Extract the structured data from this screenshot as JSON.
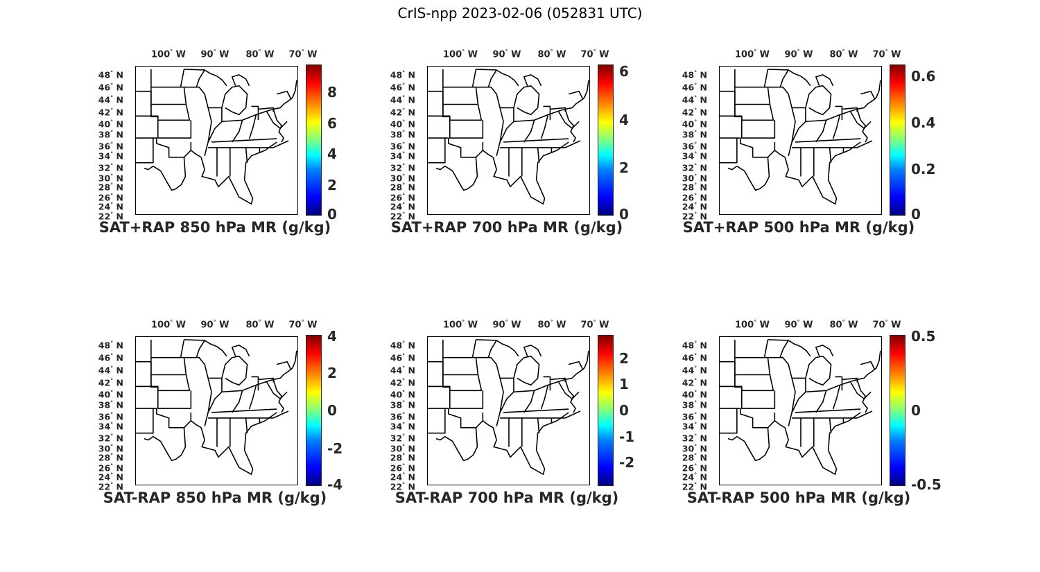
{
  "title": "CrIS-npp 2023-02-06 (052831 UTC)",
  "lon_labels": [
    "100",
    "90",
    "80",
    "70"
  ],
  "lon_suffix": "W",
  "lat_labels": [
    "48",
    "46",
    "44",
    "42",
    "40",
    "38",
    "36",
    "34",
    "32",
    "30",
    "28",
    "26",
    "24",
    "22"
  ],
  "lat_suffix": "N",
  "degree_symbol": "°",
  "colormap": "jet",
  "panels": [
    {
      "caption": "SAT+RAP 850 hPa MR (g/kg)",
      "ticks": [
        "0",
        "2",
        "4",
        "6",
        "8"
      ],
      "tick_values": [
        0,
        2,
        4,
        6,
        8
      ],
      "range": [
        0,
        9.8
      ]
    },
    {
      "caption": "SAT+RAP 700 hPa MR (g/kg)",
      "ticks": [
        "0",
        "2",
        "4",
        "6"
      ],
      "tick_values": [
        0,
        2,
        4,
        6
      ],
      "range": [
        0,
        6.3
      ]
    },
    {
      "caption": "SAT+RAP 500 hPa MR (g/kg)",
      "ticks": [
        "0",
        "0.2",
        "0.4",
        "0.6"
      ],
      "tick_values": [
        0,
        0.2,
        0.4,
        0.6
      ],
      "range": [
        0,
        0.65
      ]
    },
    {
      "caption": "SAT-RAP 850 hPa MR (g/kg)",
      "ticks": [
        "-4",
        "-2",
        "0",
        "2",
        "4"
      ],
      "tick_values": [
        -4,
        -2,
        0,
        2,
        4
      ],
      "range": [
        -4,
        4
      ]
    },
    {
      "caption": "SAT-RAP 700 hPa MR (g/kg)",
      "ticks": [
        "-2",
        "-1",
        "0",
        "1",
        "2"
      ],
      "tick_values": [
        -2,
        -1,
        0,
        1,
        2
      ],
      "range": [
        -2.9,
        2.9
      ]
    },
    {
      "caption": "SAT-RAP 500 hPa MR (g/kg)",
      "ticks": [
        "-0.5",
        "0",
        "0.5"
      ],
      "tick_values": [
        -0.5,
        0,
        0.5
      ],
      "range": [
        -0.5,
        0.5
      ]
    }
  ]
}
